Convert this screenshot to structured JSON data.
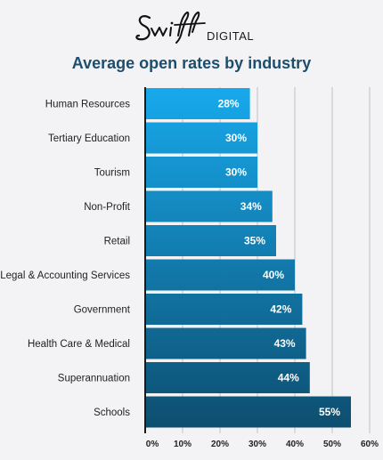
{
  "brand": {
    "script_text": "Swift",
    "word": "DIGITAL"
  },
  "chart_data": {
    "type": "bar",
    "orientation": "horizontal",
    "title": "Average open rates by industry",
    "categories": [
      "Human Resources",
      "Tertiary Education",
      "Tourism",
      "Non-Profit",
      "Retail",
      "Legal & Accounting Services",
      "Government",
      "Health Care & Medical",
      "Superannuation",
      "Schools"
    ],
    "values": [
      28,
      30,
      30,
      34,
      35,
      40,
      42,
      43,
      44,
      55
    ],
    "value_labels": [
      "28%",
      "30%",
      "30%",
      "34%",
      "35%",
      "40%",
      "42%",
      "43%",
      "44%",
      "55%"
    ],
    "x_ticks": [
      0,
      10,
      20,
      30,
      40,
      50,
      60
    ],
    "x_tick_labels": [
      "0%",
      "10%",
      "20%",
      "30%",
      "40%",
      "50%",
      "60%"
    ],
    "xlim": [
      0,
      60
    ],
    "xlabel": "",
    "ylabel": "",
    "grid": "vertical",
    "colors": {
      "gradient_start": "#17a9ec",
      "gradient_end": "#0d4d6e",
      "title": "#1c4e6e",
      "grid": "#d9d9de"
    }
  }
}
